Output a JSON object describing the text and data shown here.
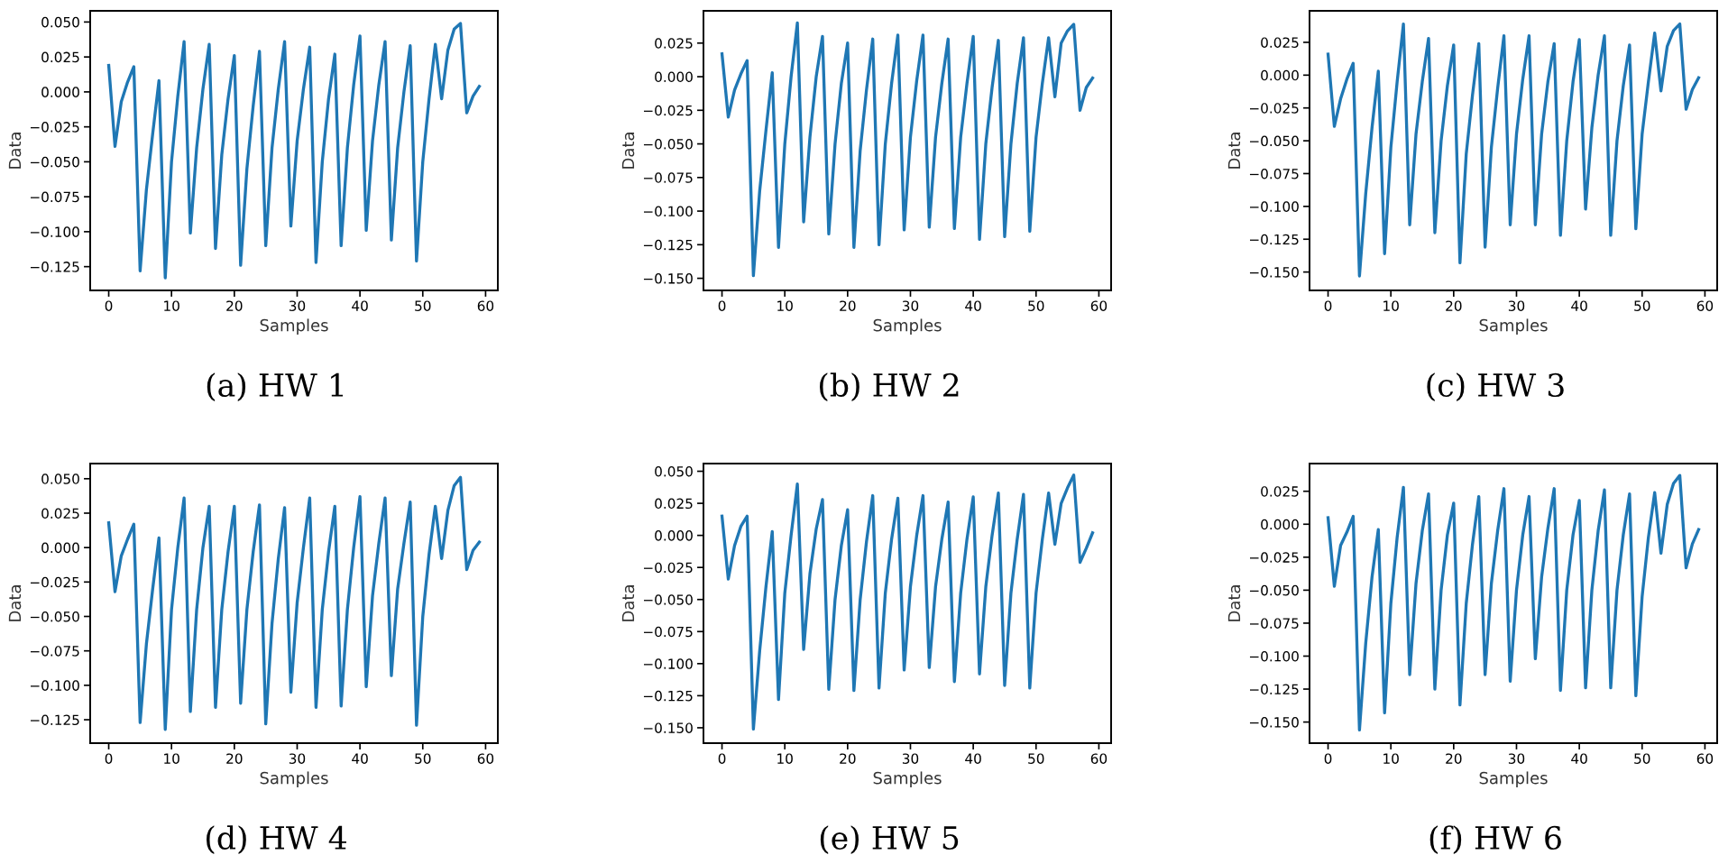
{
  "chart_data": [
    {
      "type": "line",
      "title": "(a) HW 1",
      "xlabel": "Samples",
      "ylabel": "Data",
      "xlim": [
        -2.95,
        61.95
      ],
      "ylim": [
        -0.142,
        0.058
      ],
      "xticks": [
        0,
        10,
        20,
        30,
        40,
        50,
        60
      ],
      "yticks": [
        {
          "value": -0.125,
          "label": "−0.125"
        },
        {
          "value": -0.1,
          "label": "−0.100"
        },
        {
          "value": -0.075,
          "label": "−0.075"
        },
        {
          "value": -0.05,
          "label": "−0.050"
        },
        {
          "value": -0.025,
          "label": "−0.025"
        },
        {
          "value": 0,
          "label": "0.000"
        },
        {
          "value": 0.025,
          "label": "0.025"
        },
        {
          "value": 0.05,
          "label": "0.050"
        }
      ],
      "grid": false,
      "x": [
        0,
        1,
        2,
        3,
        4,
        5,
        6,
        7,
        8,
        9,
        10,
        11,
        12,
        13,
        14,
        15,
        16,
        17,
        18,
        19,
        20,
        21,
        22,
        23,
        24,
        25,
        26,
        27,
        28,
        29,
        30,
        31,
        32,
        33,
        34,
        35,
        36,
        37,
        38,
        39,
        40,
        41,
        42,
        43,
        44,
        45,
        46,
        47,
        48,
        49,
        50,
        51,
        52,
        53,
        54,
        55,
        56,
        57,
        58,
        59
      ],
      "series": [
        {
          "color": "#1f77b4",
          "values": [
            0.019,
            -0.039,
            -0.007,
            0.007,
            0.018,
            -0.128,
            -0.07,
            -0.03,
            0.008,
            -0.133,
            -0.05,
            -0.003,
            0.036,
            -0.101,
            -0.04,
            0.002,
            0.034,
            -0.112,
            -0.045,
            -0.005,
            0.026,
            -0.124,
            -0.055,
            -0.01,
            0.029,
            -0.11,
            -0.04,
            0.002,
            0.036,
            -0.096,
            -0.035,
            0.002,
            0.032,
            -0.122,
            -0.05,
            -0.005,
            0.027,
            -0.11,
            -0.04,
            0.005,
            0.04,
            -0.099,
            -0.035,
            0.005,
            0.036,
            -0.106,
            -0.04,
            0.0,
            0.033,
            -0.121,
            -0.05,
            -0.005,
            0.034,
            -0.005,
            0.03,
            0.045,
            0.049,
            -0.015,
            -0.003,
            0.004
          ]
        }
      ]
    },
    {
      "type": "line",
      "title": "(b) HW 2",
      "xlabel": "Samples",
      "ylabel": "Data",
      "xlim": [
        -2.95,
        61.95
      ],
      "ylim": [
        -0.159,
        0.049
      ],
      "xticks": [
        0,
        10,
        20,
        30,
        40,
        50,
        60
      ],
      "yticks": [
        {
          "value": -0.15,
          "label": "−0.150"
        },
        {
          "value": -0.125,
          "label": "−0.125"
        },
        {
          "value": -0.1,
          "label": "−0.100"
        },
        {
          "value": -0.075,
          "label": "−0.075"
        },
        {
          "value": -0.05,
          "label": "−0.050"
        },
        {
          "value": -0.025,
          "label": "−0.025"
        },
        {
          "value": 0,
          "label": "0.000"
        },
        {
          "value": 0.025,
          "label": "0.025"
        }
      ],
      "grid": false,
      "x": [
        0,
        1,
        2,
        3,
        4,
        5,
        6,
        7,
        8,
        9,
        10,
        11,
        12,
        13,
        14,
        15,
        16,
        17,
        18,
        19,
        20,
        21,
        22,
        23,
        24,
        25,
        26,
        27,
        28,
        29,
        30,
        31,
        32,
        33,
        34,
        35,
        36,
        37,
        38,
        39,
        40,
        41,
        42,
        43,
        44,
        45,
        46,
        47,
        48,
        49,
        50,
        51,
        52,
        53,
        54,
        55,
        56,
        57,
        58,
        59
      ],
      "series": [
        {
          "color": "#1f77b4",
          "values": [
            0.017,
            -0.03,
            -0.01,
            0.002,
            0.012,
            -0.148,
            -0.085,
            -0.04,
            0.003,
            -0.127,
            -0.05,
            0.0,
            0.04,
            -0.108,
            -0.045,
            0.0,
            0.03,
            -0.117,
            -0.05,
            -0.005,
            0.025,
            -0.127,
            -0.055,
            -0.01,
            0.028,
            -0.125,
            -0.05,
            -0.005,
            0.031,
            -0.114,
            -0.045,
            -0.003,
            0.031,
            -0.112,
            -0.045,
            -0.005,
            0.028,
            -0.113,
            -0.045,
            -0.005,
            0.03,
            -0.121,
            -0.05,
            -0.008,
            0.027,
            -0.119,
            -0.05,
            -0.005,
            0.029,
            -0.115,
            -0.045,
            -0.005,
            0.029,
            -0.015,
            0.025,
            0.034,
            0.039,
            -0.025,
            -0.008,
            -0.001
          ]
        }
      ]
    },
    {
      "type": "line",
      "title": "(c) HW 3",
      "xlabel": "Samples",
      "ylabel": "Data",
      "xlim": [
        -2.95,
        61.95
      ],
      "ylim": [
        -0.164,
        0.049
      ],
      "xticks": [
        0,
        10,
        20,
        30,
        40,
        50,
        60
      ],
      "yticks": [
        {
          "value": -0.15,
          "label": "−0.150"
        },
        {
          "value": -0.125,
          "label": "−0.125"
        },
        {
          "value": -0.1,
          "label": "−0.100"
        },
        {
          "value": -0.075,
          "label": "−0.075"
        },
        {
          "value": -0.05,
          "label": "−0.050"
        },
        {
          "value": -0.025,
          "label": "−0.025"
        },
        {
          "value": 0,
          "label": "0.000"
        },
        {
          "value": 0.025,
          "label": "0.025"
        }
      ],
      "grid": false,
      "x": [
        0,
        1,
        2,
        3,
        4,
        5,
        6,
        7,
        8,
        9,
        10,
        11,
        12,
        13,
        14,
        15,
        16,
        17,
        18,
        19,
        20,
        21,
        22,
        23,
        24,
        25,
        26,
        27,
        28,
        29,
        30,
        31,
        32,
        33,
        34,
        35,
        36,
        37,
        38,
        39,
        40,
        41,
        42,
        43,
        44,
        45,
        46,
        47,
        48,
        49,
        50,
        51,
        52,
        53,
        54,
        55,
        56,
        57,
        58,
        59
      ],
      "series": [
        {
          "color": "#1f77b4",
          "values": [
            0.016,
            -0.039,
            -0.018,
            -0.003,
            0.009,
            -0.153,
            -0.09,
            -0.04,
            0.003,
            -0.136,
            -0.055,
            -0.005,
            0.039,
            -0.114,
            -0.045,
            -0.005,
            0.028,
            -0.12,
            -0.05,
            -0.008,
            0.023,
            -0.143,
            -0.06,
            -0.015,
            0.024,
            -0.131,
            -0.055,
            -0.01,
            0.03,
            -0.114,
            -0.045,
            -0.003,
            0.03,
            -0.114,
            -0.045,
            -0.005,
            0.024,
            -0.122,
            -0.05,
            -0.005,
            0.027,
            -0.102,
            -0.04,
            0.0,
            0.03,
            -0.122,
            -0.05,
            -0.008,
            0.023,
            -0.117,
            -0.045,
            -0.005,
            0.032,
            -0.012,
            0.022,
            0.034,
            0.039,
            -0.026,
            -0.011,
            -0.002
          ]
        }
      ]
    },
    {
      "type": "line",
      "title": "(d) HW 4",
      "xlabel": "Samples",
      "ylabel": "Data",
      "xlim": [
        -2.95,
        61.95
      ],
      "ylim": [
        -0.142,
        0.061
      ],
      "xticks": [
        0,
        10,
        20,
        30,
        40,
        50,
        60
      ],
      "yticks": [
        {
          "value": -0.125,
          "label": "−0.125"
        },
        {
          "value": -0.1,
          "label": "−0.100"
        },
        {
          "value": -0.075,
          "label": "−0.075"
        },
        {
          "value": -0.05,
          "label": "−0.050"
        },
        {
          "value": -0.025,
          "label": "−0.025"
        },
        {
          "value": 0,
          "label": "0.000"
        },
        {
          "value": 0.025,
          "label": "0.025"
        },
        {
          "value": 0.05,
          "label": "0.050"
        }
      ],
      "grid": false,
      "x": [
        0,
        1,
        2,
        3,
        4,
        5,
        6,
        7,
        8,
        9,
        10,
        11,
        12,
        13,
        14,
        15,
        16,
        17,
        18,
        19,
        20,
        21,
        22,
        23,
        24,
        25,
        26,
        27,
        28,
        29,
        30,
        31,
        32,
        33,
        34,
        35,
        36,
        37,
        38,
        39,
        40,
        41,
        42,
        43,
        44,
        45,
        46,
        47,
        48,
        49,
        50,
        51,
        52,
        53,
        54,
        55,
        56,
        57,
        58,
        59
      ],
      "series": [
        {
          "color": "#1f77b4",
          "values": [
            0.018,
            -0.032,
            -0.006,
            0.006,
            0.017,
            -0.127,
            -0.07,
            -0.03,
            0.007,
            -0.132,
            -0.045,
            0.0,
            0.036,
            -0.119,
            -0.045,
            0.0,
            0.03,
            -0.116,
            -0.045,
            -0.003,
            0.03,
            -0.113,
            -0.045,
            -0.003,
            0.031,
            -0.128,
            -0.055,
            -0.008,
            0.029,
            -0.105,
            -0.04,
            0.0,
            0.036,
            -0.116,
            -0.045,
            -0.003,
            0.03,
            -0.115,
            -0.045,
            0.0,
            0.037,
            -0.101,
            -0.035,
            0.003,
            0.036,
            -0.093,
            -0.03,
            0.003,
            0.033,
            -0.129,
            -0.05,
            -0.005,
            0.03,
            -0.008,
            0.027,
            0.045,
            0.051,
            -0.016,
            -0.002,
            0.004
          ]
        }
      ]
    },
    {
      "type": "line",
      "title": "(e) HW 5",
      "xlabel": "Samples",
      "ylabel": "Data",
      "xlim": [
        -2.95,
        61.95
      ],
      "ylim": [
        -0.162,
        0.056
      ],
      "xticks": [
        0,
        10,
        20,
        30,
        40,
        50,
        60
      ],
      "yticks": [
        {
          "value": -0.15,
          "label": "−0.150"
        },
        {
          "value": -0.125,
          "label": "−0.125"
        },
        {
          "value": -0.1,
          "label": "−0.100"
        },
        {
          "value": -0.075,
          "label": "−0.075"
        },
        {
          "value": -0.05,
          "label": "−0.050"
        },
        {
          "value": -0.025,
          "label": "−0.025"
        },
        {
          "value": 0,
          "label": "0.000"
        },
        {
          "value": 0.025,
          "label": "0.025"
        },
        {
          "value": 0.05,
          "label": "0.050"
        }
      ],
      "grid": false,
      "x": [
        0,
        1,
        2,
        3,
        4,
        5,
        6,
        7,
        8,
        9,
        10,
        11,
        12,
        13,
        14,
        15,
        16,
        17,
        18,
        19,
        20,
        21,
        22,
        23,
        24,
        25,
        26,
        27,
        28,
        29,
        30,
        31,
        32,
        33,
        34,
        35,
        36,
        37,
        38,
        39,
        40,
        41,
        42,
        43,
        44,
        45,
        46,
        47,
        48,
        49,
        50,
        51,
        52,
        53,
        54,
        55,
        56,
        57,
        58,
        59
      ],
      "series": [
        {
          "color": "#1f77b4",
          "values": [
            0.015,
            -0.034,
            -0.008,
            0.007,
            0.015,
            -0.151,
            -0.09,
            -0.04,
            0.003,
            -0.128,
            -0.045,
            0.0,
            0.04,
            -0.089,
            -0.03,
            0.005,
            0.028,
            -0.12,
            -0.05,
            -0.008,
            0.02,
            -0.121,
            -0.05,
            -0.005,
            0.031,
            -0.119,
            -0.045,
            -0.003,
            0.029,
            -0.105,
            -0.04,
            0.0,
            0.031,
            -0.103,
            -0.04,
            -0.003,
            0.026,
            -0.114,
            -0.045,
            -0.003,
            0.03,
            -0.108,
            -0.04,
            0.0,
            0.033,
            -0.117,
            -0.045,
            -0.003,
            0.032,
            -0.119,
            -0.045,
            -0.003,
            0.033,
            -0.007,
            0.025,
            0.037,
            0.047,
            -0.021,
            -0.01,
            0.002
          ]
        }
      ]
    },
    {
      "type": "line",
      "title": "(f) HW 6",
      "xlabel": "Samples",
      "ylabel": "Data",
      "xlim": [
        -2.95,
        61.95
      ],
      "ylim": [
        -0.166,
        0.046
      ],
      "xticks": [
        0,
        10,
        20,
        30,
        40,
        50,
        60
      ],
      "yticks": [
        {
          "value": -0.15,
          "label": "−0.150"
        },
        {
          "value": -0.125,
          "label": "−0.125"
        },
        {
          "value": -0.1,
          "label": "−0.100"
        },
        {
          "value": -0.075,
          "label": "−0.075"
        },
        {
          "value": -0.05,
          "label": "−0.050"
        },
        {
          "value": -0.025,
          "label": "−0.025"
        },
        {
          "value": 0,
          "label": "0.000"
        },
        {
          "value": 0.025,
          "label": "0.025"
        }
      ],
      "grid": false,
      "x": [
        0,
        1,
        2,
        3,
        4,
        5,
        6,
        7,
        8,
        9,
        10,
        11,
        12,
        13,
        14,
        15,
        16,
        17,
        18,
        19,
        20,
        21,
        22,
        23,
        24,
        25,
        26,
        27,
        28,
        29,
        30,
        31,
        32,
        33,
        34,
        35,
        36,
        37,
        38,
        39,
        40,
        41,
        42,
        43,
        44,
        45,
        46,
        47,
        48,
        49,
        50,
        51,
        52,
        53,
        54,
        55,
        56,
        57,
        58,
        59
      ],
      "series": [
        {
          "color": "#1f77b4",
          "values": [
            0.005,
            -0.047,
            -0.016,
            -0.006,
            0.006,
            -0.156,
            -0.09,
            -0.04,
            -0.004,
            -0.143,
            -0.06,
            -0.01,
            0.028,
            -0.114,
            -0.045,
            -0.005,
            0.023,
            -0.125,
            -0.05,
            -0.008,
            0.016,
            -0.137,
            -0.06,
            -0.015,
            0.021,
            -0.114,
            -0.045,
            -0.005,
            0.027,
            -0.119,
            -0.05,
            -0.008,
            0.021,
            -0.102,
            -0.04,
            -0.003,
            0.027,
            -0.126,
            -0.05,
            -0.008,
            0.018,
            -0.124,
            -0.05,
            -0.005,
            0.026,
            -0.124,
            -0.05,
            -0.008,
            0.023,
            -0.13,
            -0.055,
            -0.01,
            0.024,
            -0.022,
            0.015,
            0.031,
            0.037,
            -0.033,
            -0.015,
            -0.004
          ]
        }
      ]
    }
  ]
}
